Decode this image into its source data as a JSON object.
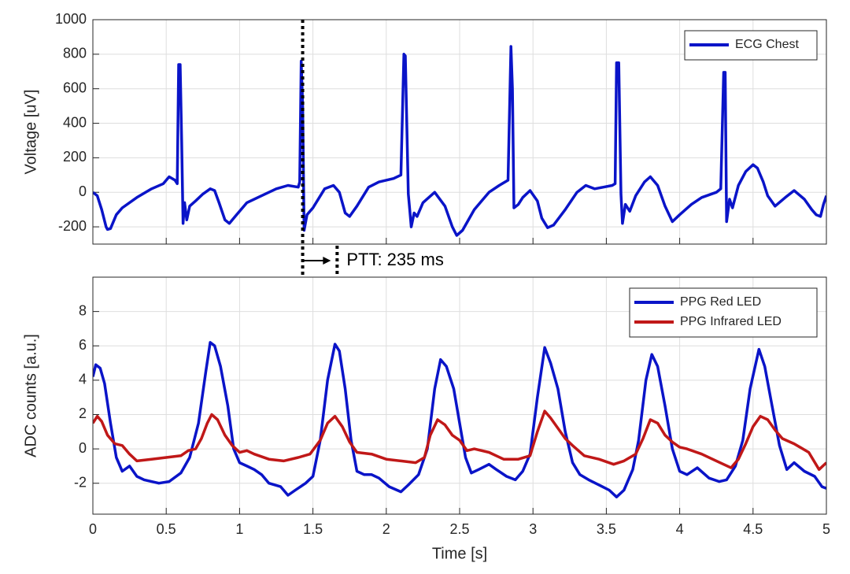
{
  "chart_data": [
    {
      "type": "line",
      "ylabel": "Voltage [uV]",
      "xlim": [
        0,
        5
      ],
      "ylim": [
        -300,
        1000
      ],
      "xticks": [
        0,
        0.5,
        1,
        1.5,
        2,
        2.5,
        3,
        3.5,
        4,
        4.5,
        5
      ],
      "show_xtick_labels": false,
      "yticks": [
        -200,
        0,
        200,
        400,
        600,
        800,
        1000
      ],
      "grid": true,
      "legend": "upper right",
      "series": [
        {
          "name": "ECG Chest",
          "color": "#0a14c8",
          "x": [
            0,
            0.03,
            0.06,
            0.09,
            0.1,
            0.12,
            0.16,
            0.2,
            0.3,
            0.4,
            0.48,
            0.52,
            0.56,
            0.575,
            0.585,
            0.595,
            0.605,
            0.615,
            0.625,
            0.64,
            0.66,
            0.7,
            0.75,
            0.8,
            0.83,
            0.86,
            0.9,
            0.93,
            0.97,
            1.05,
            1.15,
            1.25,
            1.33,
            1.4,
            1.41,
            1.42,
            1.43,
            1.44,
            1.46,
            1.5,
            1.58,
            1.64,
            1.68,
            1.72,
            1.75,
            1.8,
            1.88,
            1.95,
            2.05,
            2.1,
            2.12,
            2.13,
            2.15,
            2.16,
            2.17,
            2.19,
            2.21,
            2.25,
            2.33,
            2.4,
            2.45,
            2.48,
            2.52,
            2.6,
            2.7,
            2.77,
            2.83,
            2.85,
            2.86,
            2.87,
            2.9,
            2.93,
            2.98,
            3.03,
            3.06,
            3.1,
            3.14,
            3.22,
            3.3,
            3.36,
            3.42,
            3.48,
            3.54,
            3.56,
            3.57,
            3.585,
            3.6,
            3.61,
            3.63,
            3.66,
            3.7,
            3.76,
            3.8,
            3.85,
            3.9,
            3.95,
            4.0,
            4.08,
            4.15,
            4.25,
            4.28,
            4.3,
            4.31,
            4.32,
            4.34,
            4.36,
            4.4,
            4.45,
            4.5,
            4.53,
            4.57,
            4.6,
            4.65,
            4.72,
            4.78,
            4.85,
            4.9,
            4.93,
            4.96,
            4.98,
            5.0
          ],
          "values": [
            0,
            -20,
            -100,
            -200,
            -215,
            -210,
            -130,
            -90,
            -30,
            20,
            50,
            90,
            70,
            50,
            740,
            740,
            300,
            -180,
            -60,
            -160,
            -80,
            -50,
            -10,
            20,
            10,
            -60,
            -160,
            -180,
            -140,
            -60,
            -20,
            20,
            40,
            30,
            60,
            760,
            500,
            -220,
            -130,
            -90,
            20,
            40,
            0,
            -120,
            -140,
            -80,
            30,
            60,
            80,
            100,
            800,
            790,
            -10,
            -100,
            -200,
            -120,
            -140,
            -60,
            0,
            -80,
            -200,
            -250,
            -220,
            -100,
            0,
            40,
            70,
            845,
            600,
            -90,
            -70,
            -30,
            10,
            -50,
            -150,
            -205,
            -190,
            -100,
            0,
            40,
            20,
            30,
            40,
            50,
            750,
            750,
            -10,
            -180,
            -70,
            -110,
            -20,
            60,
            90,
            40,
            -80,
            -170,
            -130,
            -70,
            -30,
            0,
            20,
            695,
            695,
            -170,
            -40,
            -90,
            40,
            120,
            160,
            140,
            60,
            -20,
            -80,
            -30,
            10,
            -40,
            -100,
            -130,
            -140,
            -70,
            -20
          ]
        }
      ],
      "annotations": [
        {
          "text": "PTT: 235 ms",
          "x": [
            1.43,
            1.665
          ]
        }
      ]
    },
    {
      "type": "line",
      "xlabel": "Time [s]",
      "ylabel": "ADC counts [a.u.]",
      "xlim": [
        0,
        5
      ],
      "ylim": [
        -3.8,
        10
      ],
      "xticks": [
        0,
        0.5,
        1,
        1.5,
        2,
        2.5,
        3,
        3.5,
        4,
        4.5,
        5
      ],
      "yticks": [
        -2,
        0,
        2,
        4,
        6,
        8
      ],
      "grid": true,
      "legend": "upper right",
      "series": [
        {
          "name": "PPG Red LED",
          "color": "#0a14c8",
          "x": [
            0,
            0.02,
            0.05,
            0.08,
            0.12,
            0.16,
            0.2,
            0.25,
            0.3,
            0.35,
            0.45,
            0.52,
            0.6,
            0.66,
            0.72,
            0.77,
            0.8,
            0.83,
            0.87,
            0.92,
            0.96,
            1.0,
            1.05,
            1.1,
            1.15,
            1.2,
            1.28,
            1.33,
            1.38,
            1.45,
            1.5,
            1.55,
            1.6,
            1.65,
            1.68,
            1.72,
            1.76,
            1.8,
            1.85,
            1.9,
            1.95,
            2.02,
            2.1,
            2.15,
            2.22,
            2.28,
            2.33,
            2.37,
            2.41,
            2.46,
            2.5,
            2.54,
            2.58,
            2.63,
            2.7,
            2.75,
            2.82,
            2.88,
            2.93,
            2.98,
            3.03,
            3.08,
            3.12,
            3.17,
            3.22,
            3.27,
            3.32,
            3.38,
            3.45,
            3.52,
            3.57,
            3.62,
            3.68,
            3.72,
            3.77,
            3.81,
            3.85,
            3.9,
            3.95,
            4.0,
            4.05,
            4.12,
            4.2,
            4.27,
            4.32,
            4.38,
            4.43,
            4.48,
            4.54,
            4.58,
            4.63,
            4.68,
            4.73,
            4.78,
            4.85,
            4.92,
            4.97,
            5.0
          ],
          "values": [
            4.2,
            4.9,
            4.7,
            3.8,
            1.5,
            -0.5,
            -1.3,
            -1.0,
            -1.6,
            -1.8,
            -2.0,
            -1.9,
            -1.4,
            -0.5,
            1.5,
            4.5,
            6.2,
            6.0,
            4.8,
            2.5,
            0,
            -0.8,
            -1.0,
            -1.2,
            -1.5,
            -2.0,
            -2.2,
            -2.7,
            -2.4,
            -2.0,
            -1.6,
            0.5,
            4.0,
            6.1,
            5.7,
            3.5,
            0.5,
            -1.3,
            -1.5,
            -1.5,
            -1.7,
            -2.2,
            -2.5,
            -2.1,
            -1.5,
            0,
            3.5,
            5.2,
            4.8,
            3.5,
            1.5,
            -0.5,
            -1.4,
            -1.2,
            -0.9,
            -1.2,
            -1.6,
            -1.8,
            -1.3,
            -0.3,
            3.0,
            5.9,
            5.0,
            3.5,
            1.0,
            -0.8,
            -1.5,
            -1.8,
            -2.1,
            -2.4,
            -2.8,
            -2.4,
            -1.2,
            0.5,
            4.0,
            5.5,
            4.8,
            2.5,
            0,
            -1.3,
            -1.5,
            -1.1,
            -1.7,
            -1.9,
            -1.8,
            -1.0,
            0.5,
            3.5,
            5.8,
            4.8,
            2.5,
            0.2,
            -1.2,
            -0.8,
            -1.3,
            -1.6,
            -2.2,
            -2.3
          ]
        },
        {
          "name": "PPG Infrared LED",
          "color": "#c01818",
          "x": [
            0,
            0.03,
            0.06,
            0.1,
            0.15,
            0.2,
            0.25,
            0.3,
            0.4,
            0.5,
            0.6,
            0.65,
            0.7,
            0.74,
            0.78,
            0.81,
            0.85,
            0.9,
            0.95,
            1.0,
            1.05,
            1.1,
            1.2,
            1.3,
            1.4,
            1.48,
            1.55,
            1.6,
            1.65,
            1.7,
            1.75,
            1.8,
            1.9,
            2.0,
            2.1,
            2.2,
            2.26,
            2.3,
            2.35,
            2.4,
            2.45,
            2.5,
            2.55,
            2.6,
            2.7,
            2.8,
            2.9,
            2.98,
            3.03,
            3.08,
            3.12,
            3.17,
            3.22,
            3.27,
            3.35,
            3.45,
            3.55,
            3.62,
            3.7,
            3.75,
            3.8,
            3.85,
            3.9,
            3.95,
            4.0,
            4.05,
            4.15,
            4.25,
            4.35,
            4.4,
            4.45,
            4.5,
            4.55,
            4.6,
            4.65,
            4.7,
            4.78,
            4.88,
            4.95,
            5.0
          ],
          "values": [
            1.5,
            1.9,
            1.6,
            0.8,
            0.3,
            0.2,
            -0.3,
            -0.7,
            -0.6,
            -0.5,
            -0.4,
            -0.1,
            0.0,
            0.6,
            1.5,
            2.0,
            1.7,
            0.8,
            0.2,
            -0.2,
            -0.1,
            -0.3,
            -0.6,
            -0.7,
            -0.5,
            -0.3,
            0.5,
            1.5,
            1.9,
            1.3,
            0.4,
            -0.2,
            -0.3,
            -0.6,
            -0.7,
            -0.8,
            -0.5,
            0.8,
            1.7,
            1.4,
            0.8,
            0.5,
            -0.1,
            0.0,
            -0.2,
            -0.6,
            -0.6,
            -0.4,
            1.0,
            2.2,
            1.8,
            1.2,
            0.6,
            0.2,
            -0.4,
            -0.6,
            -0.9,
            -0.7,
            -0.3,
            0.6,
            1.7,
            1.5,
            0.8,
            0.4,
            0.1,
            0.0,
            -0.3,
            -0.7,
            -1.1,
            -0.6,
            0.3,
            1.3,
            1.9,
            1.7,
            1.1,
            0.6,
            0.3,
            -0.2,
            -1.2,
            -0.8
          ]
        }
      ]
    }
  ]
}
